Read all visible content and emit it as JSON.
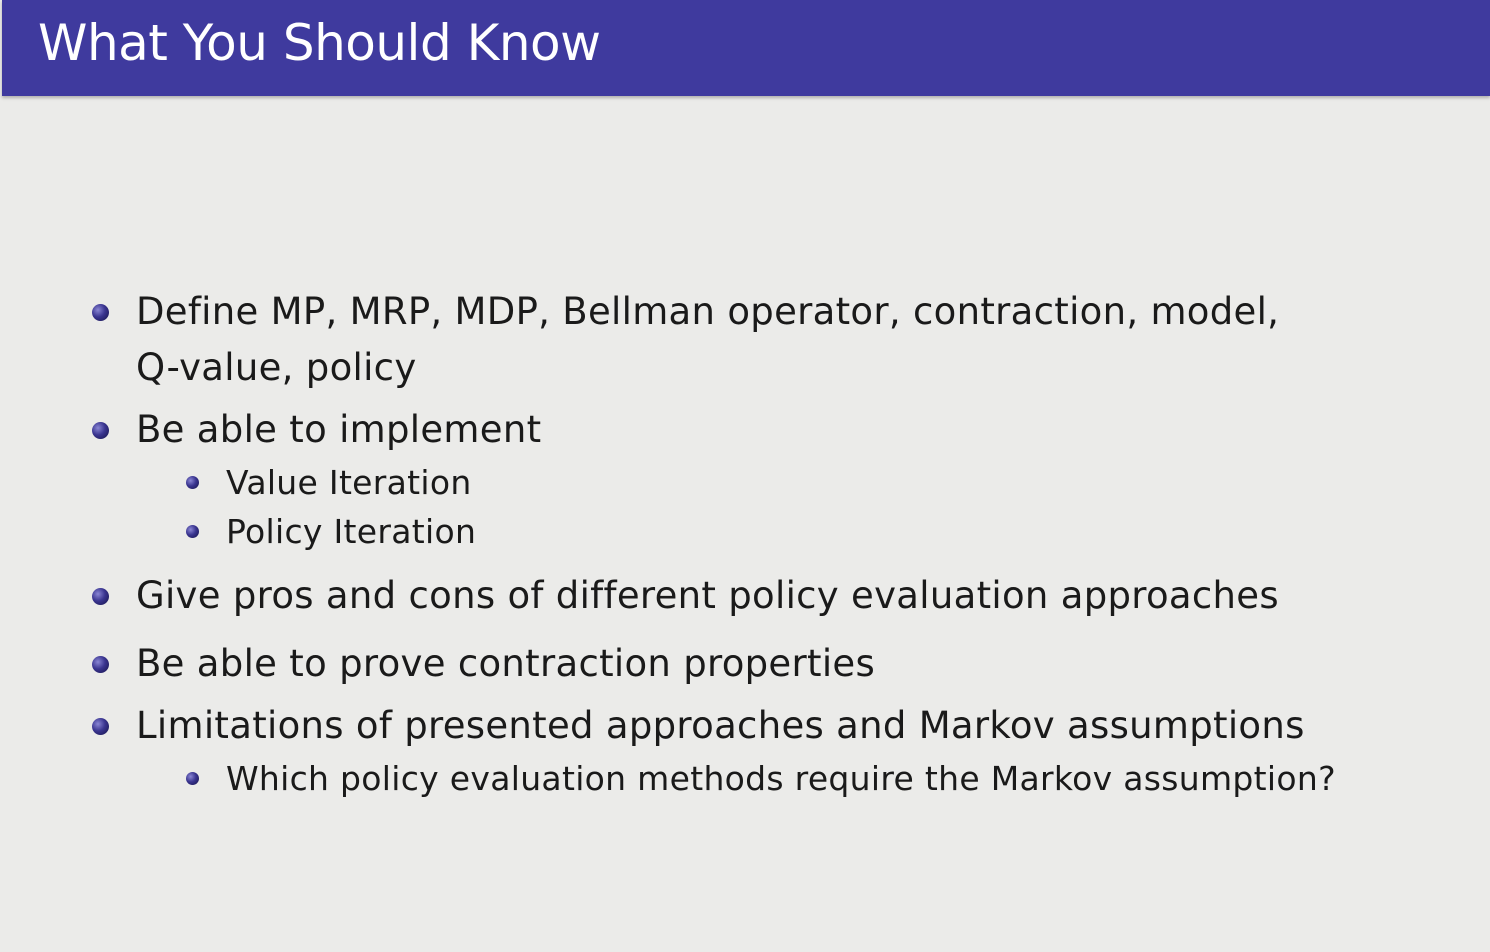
{
  "slide": {
    "title": "What You Should Know",
    "colors": {
      "title_bar": "#3f3a9e",
      "background": "#ebebe9",
      "bullet": "#3a3590"
    },
    "bullets": [
      {
        "text": "Define MP, MRP, MDP, Bellman operator, contraction, model, Q-value, policy",
        "sub": []
      },
      {
        "text": "Be able to implement",
        "sub": [
          "Value Iteration",
          "Policy Iteration"
        ]
      },
      {
        "text": "Give pros and cons of different policy evaluation approaches",
        "sub": []
      },
      {
        "text": "Be able to prove contraction properties",
        "sub": []
      },
      {
        "text": "Limitations of presented approaches and Markov assumptions",
        "sub": [
          "Which policy evaluation methods require the Markov assumption?"
        ]
      }
    ]
  }
}
